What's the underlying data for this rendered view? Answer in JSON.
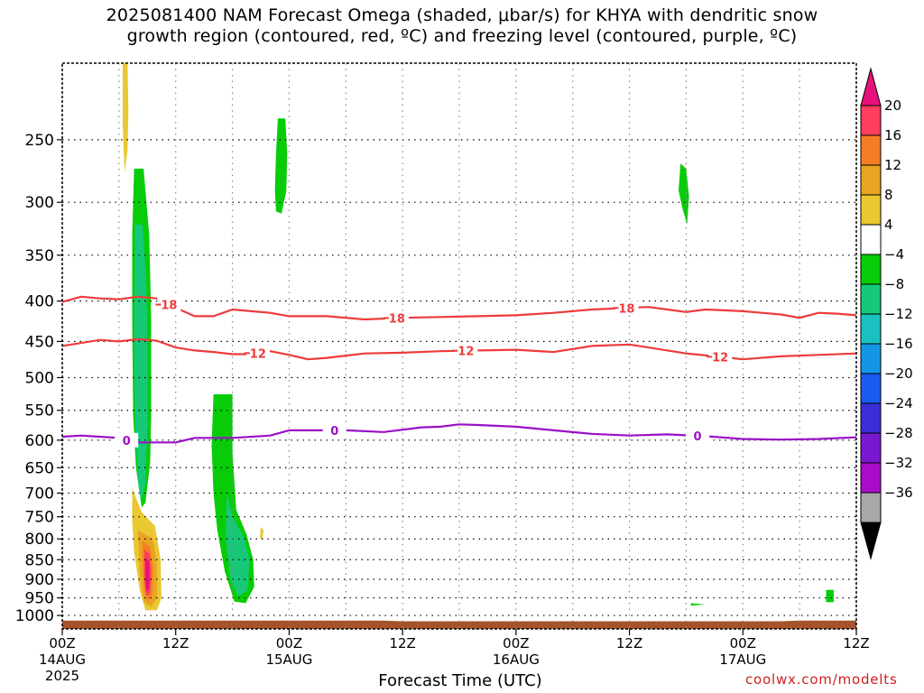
{
  "chart_data": {
    "type": "contour",
    "title_line1": "2025081400 NAM Forecast Omega (shaded, μbar/s) for KHYA with dendritic snow",
    "title_line2": "growth region (contoured, red, ºC) and freezing level (contoured, purple, ºC)",
    "xlabel": "Forecast Time (UTC)",
    "credit": "coolwx.com/modelts",
    "y_scale": "log-pressure",
    "ylim": [
      1040,
      200
    ],
    "y_ticks": [
      250,
      300,
      350,
      400,
      450,
      500,
      550,
      600,
      650,
      700,
      750,
      800,
      850,
      900,
      950,
      1000
    ],
    "xlim_hours": [
      0,
      84
    ],
    "x_ticks": [
      {
        "hour": 0,
        "label": "00Z",
        "sub1": "14AUG",
        "sub2": "2025"
      },
      {
        "hour": 12,
        "label": "12Z",
        "sub1": "",
        "sub2": ""
      },
      {
        "hour": 24,
        "label": "00Z",
        "sub1": "15AUG",
        "sub2": ""
      },
      {
        "hour": 36,
        "label": "12Z",
        "sub1": "",
        "sub2": ""
      },
      {
        "hour": 48,
        "label": "00Z",
        "sub1": "16AUG",
        "sub2": ""
      },
      {
        "hour": 60,
        "label": "12Z",
        "sub1": "",
        "sub2": ""
      },
      {
        "hour": 72,
        "label": "00Z",
        "sub1": "17AUG",
        "sub2": ""
      },
      {
        "hour": 84,
        "label": "12Z",
        "sub1": "",
        "sub2": ""
      }
    ],
    "vertical_gridlines_hours": [
      6,
      12,
      18,
      24,
      30,
      36,
      42,
      48,
      54,
      60,
      66,
      72,
      78
    ],
    "grid": true,
    "colorbar": {
      "placement": "right",
      "levels": [
        {
          "label": "20",
          "color": "#ff3d5e"
        },
        {
          "label": "16",
          "color": "#f57d25"
        },
        {
          "label": "12",
          "color": "#e7a523"
        },
        {
          "label": "8",
          "color": "#e9c832"
        },
        {
          "label": "4",
          "color": "#ffffff"
        },
        {
          "label": "−4",
          "color": "#08cc08"
        },
        {
          "label": "−8",
          "color": "#16c878"
        },
        {
          "label": "−12",
          "color": "#19c2c0"
        },
        {
          "label": "−16",
          "color": "#1496e6"
        },
        {
          "label": "−20",
          "color": "#1a5aef"
        },
        {
          "label": "−24",
          "color": "#3a2ed8"
        },
        {
          "label": "−28",
          "color": "#7a18d0"
        },
        {
          "label": "−32",
          "color": "#a80cc8"
        },
        {
          "label": "−36",
          "color": "#a8a8a8"
        }
      ],
      "top_arrow_color": "#e8107a",
      "bottom_arrow_color": "#000000"
    },
    "contours": [
      {
        "name": "-18",
        "color": "#ee3b3b",
        "points": [
          [
            0,
            401
          ],
          [
            2,
            395
          ],
          [
            4,
            397
          ],
          [
            6,
            398
          ],
          [
            8,
            395
          ],
          [
            10,
            397
          ],
          [
            12,
            408
          ],
          [
            14,
            418
          ],
          [
            16,
            418
          ],
          [
            18,
            410
          ],
          [
            20,
            412
          ],
          [
            22,
            414
          ],
          [
            24,
            418
          ],
          [
            28,
            418
          ],
          [
            32,
            422
          ],
          [
            36,
            420
          ],
          [
            40,
            419
          ],
          [
            44,
            418
          ],
          [
            48,
            417
          ],
          [
            52,
            414
          ],
          [
            56,
            410
          ],
          [
            60,
            408
          ],
          [
            62,
            407
          ],
          [
            64,
            410
          ],
          [
            66,
            413
          ],
          [
            68,
            410
          ],
          [
            70,
            411
          ],
          [
            72,
            412
          ],
          [
            74,
            414
          ],
          [
            76,
            416
          ],
          [
            78,
            420
          ],
          [
            80,
            414
          ],
          [
            82,
            415
          ],
          [
            84,
            417
          ]
        ],
        "labels": [
          {
            "hour": 11.3,
            "text": "18"
          },
          {
            "hour": 35.4,
            "text": "18"
          },
          {
            "hour": 59.7,
            "text": "18"
          }
        ]
      },
      {
        "name": "-12",
        "color": "#ee3b3b",
        "points": [
          [
            0,
            456
          ],
          [
            2,
            452
          ],
          [
            4,
            448
          ],
          [
            6,
            450
          ],
          [
            8,
            447
          ],
          [
            10,
            449
          ],
          [
            12,
            458
          ],
          [
            14,
            462
          ],
          [
            16,
            464
          ],
          [
            18,
            467
          ],
          [
            20,
            467
          ],
          [
            22,
            463
          ],
          [
            24,
            468
          ],
          [
            26,
            474
          ],
          [
            28,
            472
          ],
          [
            30,
            469
          ],
          [
            32,
            466
          ],
          [
            36,
            465
          ],
          [
            40,
            463
          ],
          [
            44,
            462
          ],
          [
            48,
            461
          ],
          [
            52,
            464
          ],
          [
            56,
            456
          ],
          [
            60,
            454
          ],
          [
            62,
            458
          ],
          [
            66,
            466
          ],
          [
            70,
            471
          ],
          [
            72,
            474
          ],
          [
            76,
            470
          ],
          [
            80,
            468
          ],
          [
            84,
            466
          ]
        ],
        "labels": [
          {
            "hour": 20.7,
            "text": "12"
          },
          {
            "hour": 42.7,
            "text": "12"
          },
          {
            "hour": 69.6,
            "text": "12"
          }
        ]
      },
      {
        "name": "0",
        "color": "#9a10c8",
        "points": [
          [
            0,
            594
          ],
          [
            2,
            592
          ],
          [
            4,
            594
          ],
          [
            6,
            596
          ],
          [
            7,
            601
          ],
          [
            8,
            604
          ],
          [
            10,
            604
          ],
          [
            12,
            604
          ],
          [
            13,
            600
          ],
          [
            14,
            596
          ],
          [
            18,
            596
          ],
          [
            22,
            592
          ],
          [
            24,
            583
          ],
          [
            28,
            583
          ],
          [
            30,
            583
          ],
          [
            34,
            586
          ],
          [
            38,
            578
          ],
          [
            40,
            577
          ],
          [
            42,
            573
          ],
          [
            44,
            574
          ],
          [
            48,
            577
          ],
          [
            52,
            583
          ],
          [
            56,
            589
          ],
          [
            60,
            592
          ],
          [
            64,
            590
          ],
          [
            68,
            593
          ],
          [
            72,
            598
          ],
          [
            76,
            599
          ],
          [
            80,
            598
          ],
          [
            84,
            595
          ]
        ],
        "labels": [
          {
            "hour": 6.8,
            "text": "0"
          },
          {
            "hour": 28.8,
            "text": "0"
          },
          {
            "hour": 67.2,
            "text": "0"
          }
        ]
      }
    ],
    "omega_regions": [
      {
        "level": "−4",
        "color": "#08cc08",
        "points": [
          [
            7.6,
            272
          ],
          [
            8.6,
            272
          ],
          [
            9.2,
            330
          ],
          [
            9.4,
            420
          ],
          [
            9.4,
            560
          ],
          [
            9.3,
            640
          ],
          [
            8.8,
            720
          ],
          [
            8.4,
            730
          ],
          [
            7.8,
            650
          ],
          [
            7.5,
            560
          ],
          [
            7.4,
            420
          ],
          [
            7.4,
            330
          ]
        ]
      },
      {
        "level": "−8",
        "color": "#16c878",
        "points": [
          [
            7.7,
            320
          ],
          [
            8.5,
            320
          ],
          [
            8.9,
            380
          ],
          [
            9.0,
            450
          ],
          [
            9.0,
            580
          ],
          [
            8.8,
            680
          ],
          [
            8.4,
            715
          ],
          [
            8.1,
            690
          ],
          [
            7.7,
            580
          ],
          [
            7.6,
            450
          ]
        ]
      },
      {
        "level": "−4",
        "color": "#08cc08",
        "points": [
          [
            22.8,
            235
          ],
          [
            23.6,
            235
          ],
          [
            23.8,
            260
          ],
          [
            23.7,
            290
          ],
          [
            23.2,
            310
          ],
          [
            22.6,
            308
          ],
          [
            22.5,
            290
          ],
          [
            22.6,
            262
          ]
        ]
      },
      {
        "level": "−4",
        "color": "#08cc08",
        "points": [
          [
            16,
            525
          ],
          [
            18,
            525
          ],
          [
            18,
            620
          ],
          [
            18.4,
            735
          ],
          [
            19.5,
            790
          ],
          [
            20.2,
            850
          ],
          [
            20.3,
            920
          ],
          [
            19.4,
            965
          ],
          [
            18.2,
            960
          ],
          [
            17.2,
            880
          ],
          [
            16.4,
            780
          ],
          [
            16,
            700
          ],
          [
            15.8,
            610
          ]
        ]
      },
      {
        "level": "−8",
        "color": "#16c878",
        "points": [
          [
            17.4,
            700
          ],
          [
            18,
            750
          ],
          [
            19.3,
            800
          ],
          [
            19.8,
            850
          ],
          [
            19.6,
            930
          ],
          [
            18.6,
            945
          ],
          [
            17.8,
            900
          ],
          [
            17.3,
            800
          ]
        ]
      },
      {
        "level": "−4",
        "color": "#08cc08",
        "points": [
          [
            65.4,
            268
          ],
          [
            66.0,
            272
          ],
          [
            66.3,
            295
          ],
          [
            66.1,
            320
          ],
          [
            65.6,
            305
          ],
          [
            65.2,
            290
          ]
        ]
      },
      {
        "level": "−4",
        "color": "#08cc08",
        "points": [
          [
            80.8,
            928
          ],
          [
            81.6,
            928
          ],
          [
            81.6,
            962
          ],
          [
            80.8,
            962
          ]
        ]
      },
      {
        "level": "−4",
        "color": "#08cc08",
        "points": [
          [
            66.5,
            965
          ],
          [
            68.0,
            968
          ],
          [
            66.5,
            972
          ]
        ]
      }
    ],
    "omega_positive_regions": [
      {
        "level": "4",
        "color": "#e9c832",
        "points": [
          [
            6.4,
            198
          ],
          [
            6.9,
            198
          ],
          [
            7.0,
            230
          ],
          [
            6.9,
            258
          ],
          [
            6.6,
            275
          ],
          [
            6.4,
            240
          ]
        ]
      },
      {
        "level": "4",
        "color": "#e9c832",
        "points": [
          [
            7.4,
            690
          ],
          [
            8.4,
            740
          ],
          [
            9.8,
            770
          ],
          [
            10.4,
            850
          ],
          [
            10.5,
            950
          ],
          [
            10.0,
            985
          ],
          [
            8.8,
            985
          ],
          [
            8.2,
            930
          ],
          [
            7.6,
            830
          ],
          [
            7.4,
            760
          ]
        ]
      },
      {
        "level": "8",
        "color": "#e7a523",
        "points": [
          [
            8.0,
            780
          ],
          [
            9.6,
            800
          ],
          [
            10.0,
            860
          ],
          [
            10.0,
            950
          ],
          [
            9.4,
            975
          ],
          [
            8.6,
            960
          ],
          [
            8.2,
            880
          ]
        ]
      },
      {
        "level": "12",
        "color": "#f57d25",
        "points": [
          [
            8.5,
            805
          ],
          [
            9.3,
            820
          ],
          [
            9.6,
            870
          ],
          [
            9.5,
            940
          ],
          [
            9.1,
            960
          ],
          [
            8.7,
            930
          ],
          [
            8.5,
            860
          ]
        ]
      },
      {
        "level": "16",
        "color": "#ff3d5e",
        "points": [
          [
            8.7,
            825
          ],
          [
            9.2,
            835
          ],
          [
            9.4,
            880
          ],
          [
            9.3,
            935
          ],
          [
            8.9,
            945
          ],
          [
            8.7,
            900
          ]
        ]
      },
      {
        "level": "20",
        "color": "#e8107a",
        "points": [
          [
            8.8,
            845
          ],
          [
            9.2,
            855
          ],
          [
            9.2,
            920
          ],
          [
            8.9,
            935
          ],
          [
            8.8,
            890
          ]
        ]
      },
      {
        "level": "4",
        "color": "#e9c832",
        "points": [
          [
            21.0,
            772
          ],
          [
            21.3,
            780
          ],
          [
            21.2,
            798
          ],
          [
            20.9,
            800
          ]
        ]
      }
    ],
    "terrain": {
      "color": "#a5532b",
      "top_pressure": 1015,
      "points": [
        [
          0,
          1015
        ],
        [
          34,
          1015
        ],
        [
          36,
          1017
        ],
        [
          76,
          1017
        ],
        [
          78,
          1015
        ],
        [
          84,
          1015
        ]
      ]
    }
  }
}
